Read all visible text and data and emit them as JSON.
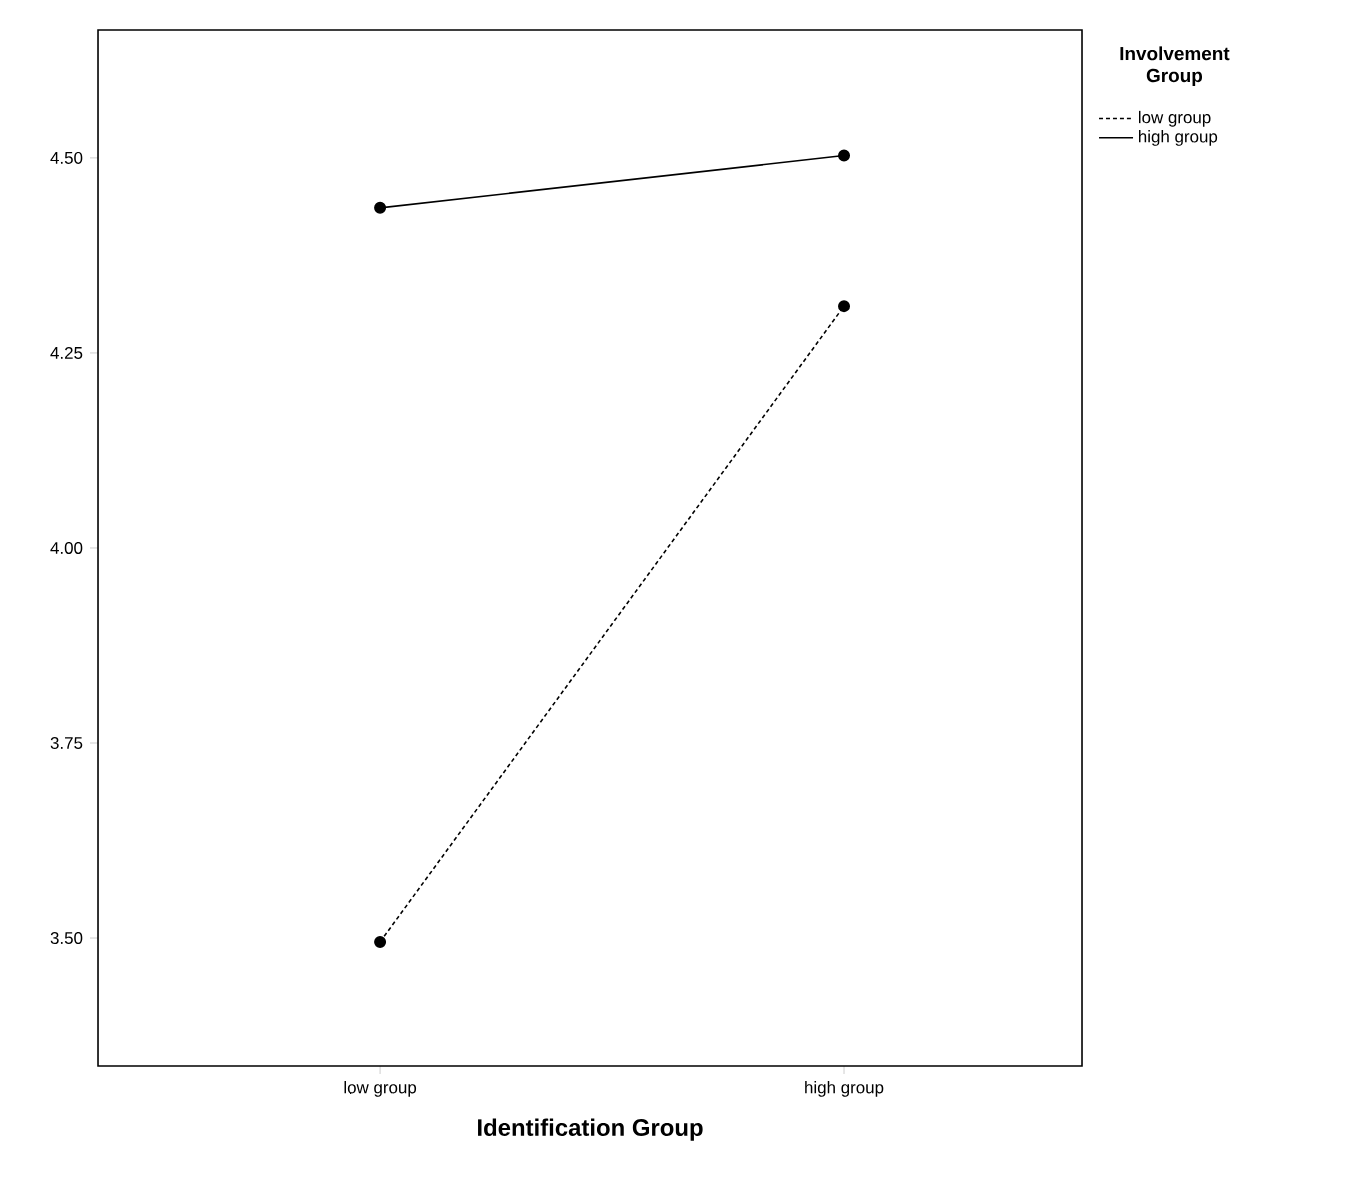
{
  "chart_data": {
    "type": "line",
    "xlabel": "Identification Group",
    "legend_title": "Involvement Group",
    "categories": [
      "low group",
      "high group"
    ],
    "series": [
      {
        "name": "low group",
        "color": "#000000",
        "line_style": "dashed",
        "values": [
          3.495,
          4.31
        ]
      },
      {
        "name": "high group",
        "color": "#000000",
        "line_style": "solid",
        "values": [
          4.436,
          4.503
        ]
      }
    ],
    "ylim": [
      3.336,
      4.664
    ],
    "yticks": [
      {
        "value": 3.5,
        "label": "3.50"
      },
      {
        "value": 3.75,
        "label": "3.75"
      },
      {
        "value": 4.0,
        "label": "4.00"
      },
      {
        "value": 4.25,
        "label": "4.25"
      },
      {
        "value": 4.5,
        "label": "4.50"
      }
    ],
    "marker": "circle",
    "grid": false,
    "legend": "top right"
  }
}
